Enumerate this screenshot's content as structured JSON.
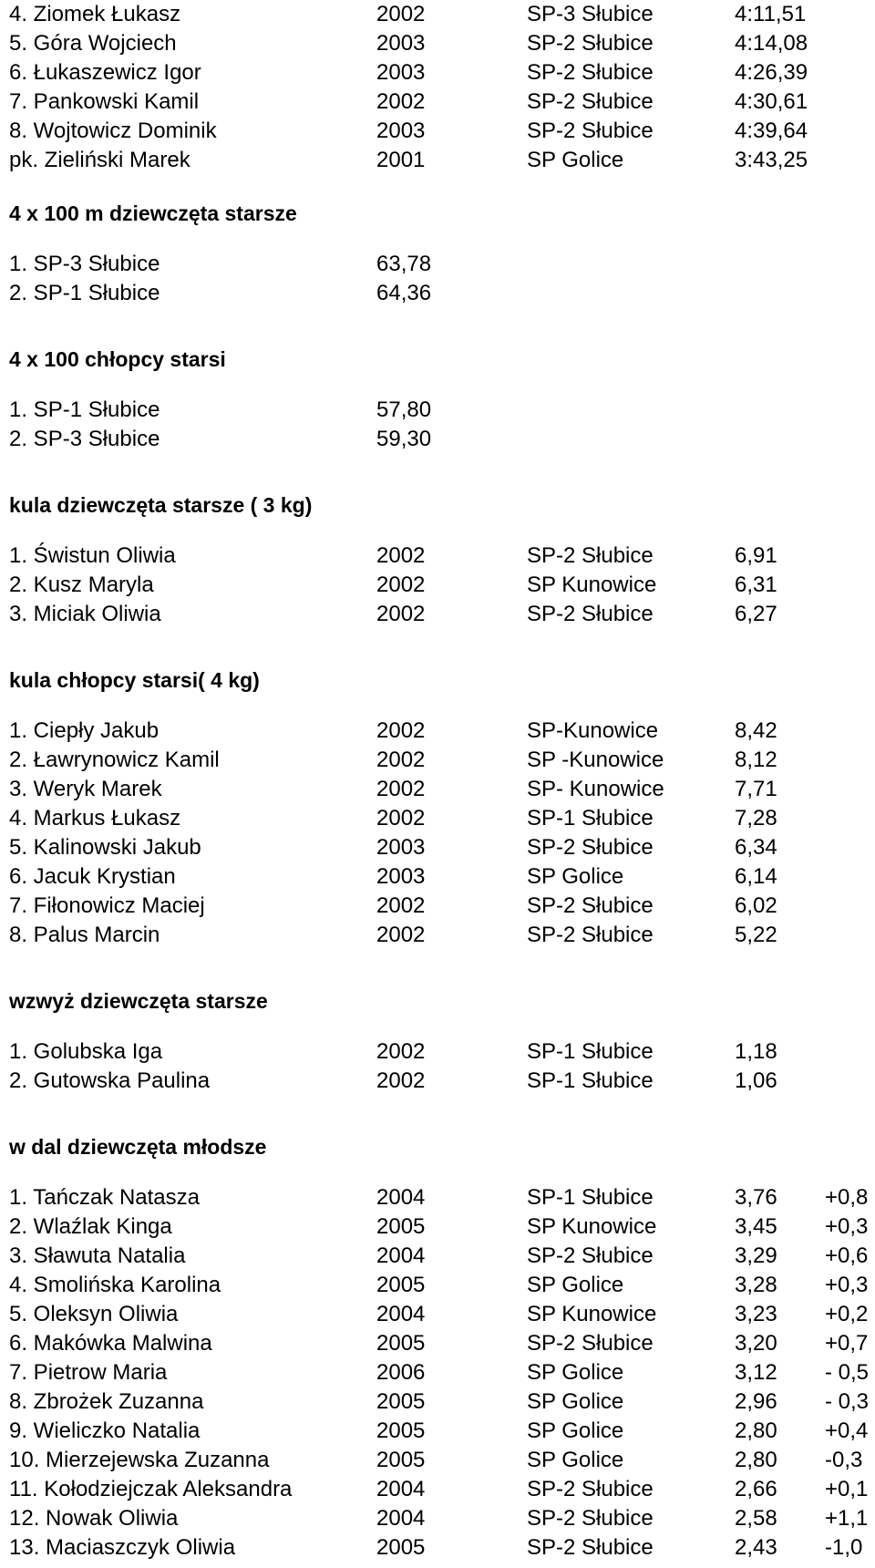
{
  "sections": [
    {
      "id": "s0",
      "kind": "athletes",
      "heading": "",
      "rows": [
        {
          "name": "4.  Ziomek Łukasz",
          "year": "2002",
          "club": "SP-3 Słubice",
          "result": "4:11,51"
        },
        {
          "name": "5.  Góra Wojciech",
          "year": "2003",
          "club": "SP-2 Słubice",
          "result": "4:14,08"
        },
        {
          "name": "6.  Łukaszewicz Igor",
          "year": "2003",
          "club": "SP-2 Słubice",
          "result": "4:26,39"
        },
        {
          "name": "7.  Pankowski Kamil",
          "year": "2002",
          "club": "SP-2 Słubice",
          "result": "4:30,61"
        },
        {
          "name": "8.  Wojtowicz Dominik",
          "year": "2003",
          "club": "SP-2 Słubice",
          "result": "4:39,64"
        },
        {
          "name": "pk.  Zieliński Marek",
          "year": "2001",
          "club": "SP Golice",
          "result": "3:43,25"
        }
      ]
    },
    {
      "id": "s1",
      "kind": "relay",
      "heading": "4 x 100 m dziewczęta starsze",
      "rows": [
        {
          "name": "1.  SP-3 Słubice",
          "result": "63,78"
        },
        {
          "name": "2.  SP-1 Słubice",
          "result": "64,36"
        }
      ]
    },
    {
      "id": "s2",
      "kind": "relay",
      "heading": "4 x 100  chłopcy starsi",
      "rows": [
        {
          "name": "1.  SP-1 Słubice",
          "result": "57,80"
        },
        {
          "name": "2.  SP-3 Słubice",
          "result": "59,30"
        }
      ]
    },
    {
      "id": "s3",
      "kind": "athletes",
      "heading": "kula dziewczęta starsze ( 3 kg)",
      "rows": [
        {
          "name": "1. Świstun Oliwia",
          "year": "2002",
          "club": "SP-2 Słubice",
          "result": "6,91"
        },
        {
          "name": "2. Kusz Maryla",
          "year": "2002",
          "club": "SP Kunowice",
          "result": "6,31"
        },
        {
          "name": "3. Miciak Oliwia",
          "year": "2002",
          "club": "SP-2 Słubice",
          "result": "6,27"
        }
      ]
    },
    {
      "id": "s4",
      "kind": "athletes",
      "heading": "kula chłopcy starsi( 4 kg)",
      "rows": [
        {
          "name": "1.  Ciepły Jakub",
          "year": "2002",
          "club": "SP-Kunowice",
          "result": "8,42"
        },
        {
          "name": "2.  Ławrynowicz Kamil",
          "year": "2002",
          "club": "SP -Kunowice",
          "result": "8,12"
        },
        {
          "name": "3.  Weryk Marek",
          "year": "2002",
          "club": "SP- Kunowice",
          "result": "7,71"
        },
        {
          "name": "4.  Markus Łukasz",
          "year": "2002",
          "club": "SP-1 Słubice",
          "result": "7,28"
        },
        {
          "name": "5.  Kalinowski Jakub",
          "year": "2003",
          "club": "SP-2 Słubice",
          "result": "6,34"
        },
        {
          "name": "6.  Jacuk Krystian",
          "year": "2003",
          "club": "SP Golice",
          "result": "6,14"
        },
        {
          "name": "7.  Fiłonowicz Maciej",
          "year": "2002",
          "club": "SP-2 Słubice",
          "result": "6,02"
        },
        {
          "name": "8.  Palus Marcin",
          "year": "2002",
          "club": "SP-2 Słubice",
          "result": "5,22"
        }
      ]
    },
    {
      "id": "s5",
      "kind": "athletes",
      "heading": "wzwyż dziewczęta starsze",
      "rows": [
        {
          "name": "1.  Golubska Iga",
          "year": "2002",
          "club": "SP-1 Słubice",
          "result": "1,18"
        },
        {
          "name": "2.  Gutowska Paulina",
          "year": "2002",
          "club": "SP-1 Słubice",
          "result": "1,06"
        }
      ]
    },
    {
      "id": "s6",
      "kind": "athletes-wind",
      "heading": "w dal dziewczęta młodsze",
      "rows": [
        {
          "name": "1.  Tańczak Natasza",
          "year": "2004",
          "club": "SP-1 Słubice",
          "result": "3,76",
          "wind": "+0,8"
        },
        {
          "name": "2.  Wlaźlak Kinga",
          "year": "2005",
          "club": "SP Kunowice",
          "result": "3,45",
          "wind": "+0,3"
        },
        {
          "name": "3.  Sławuta Natalia",
          "year": "2004",
          "club": "SP-2 Słubice",
          "result": "3,29",
          "wind": "+0,6"
        },
        {
          "name": "4.  Smolińska Karolina",
          "year": "2005",
          "club": "SP Golice",
          "result": "3,28",
          "wind": "+0,3"
        },
        {
          "name": "5.  Oleksyn Oliwia",
          "year": "2004",
          "club": "SP Kunowice",
          "result": "3,23",
          "wind": "+0,2"
        },
        {
          "name": "6.  Makówka Malwina",
          "year": "2005",
          "club": "SP-2 Słubice",
          "result": "3,20",
          "wind": "+0,7"
        },
        {
          "name": "7.  Pietrow Maria",
          "year": "2006",
          "club": "SP Golice",
          "result": "3,12",
          "wind": "- 0,5"
        },
        {
          "name": "8.  Zbrożek Zuzanna",
          "year": "2005",
          "club": "SP Golice",
          "result": "2,96",
          "wind": "- 0,3"
        },
        {
          "name": "9.  Wieliczko Natalia",
          "year": "2005",
          "club": "SP Golice",
          "result": "2,80",
          "wind": "+0,4"
        },
        {
          "name": "10. Mierzejewska Zuzanna",
          "year": "2005",
          "club": "SP Golice",
          "result": "2,80",
          "wind": "-0,3"
        },
        {
          "name": "11. Kołodziejczak Aleksandra",
          "year": "2004",
          "club": "SP-2 Słubice",
          "result": "2,66",
          "wind": "+0,1"
        },
        {
          "name": "12. Nowak Oliwia",
          "year": "2004",
          "club": "SP-2 Słubice",
          "result": "2,58",
          "wind": "+1,1"
        },
        {
          "name": "13. Maciaszczyk Oliwia",
          "year": "2005",
          "club": "SP-2 Słubice",
          "result": "2,43",
          "wind": "-1,0"
        }
      ]
    }
  ]
}
